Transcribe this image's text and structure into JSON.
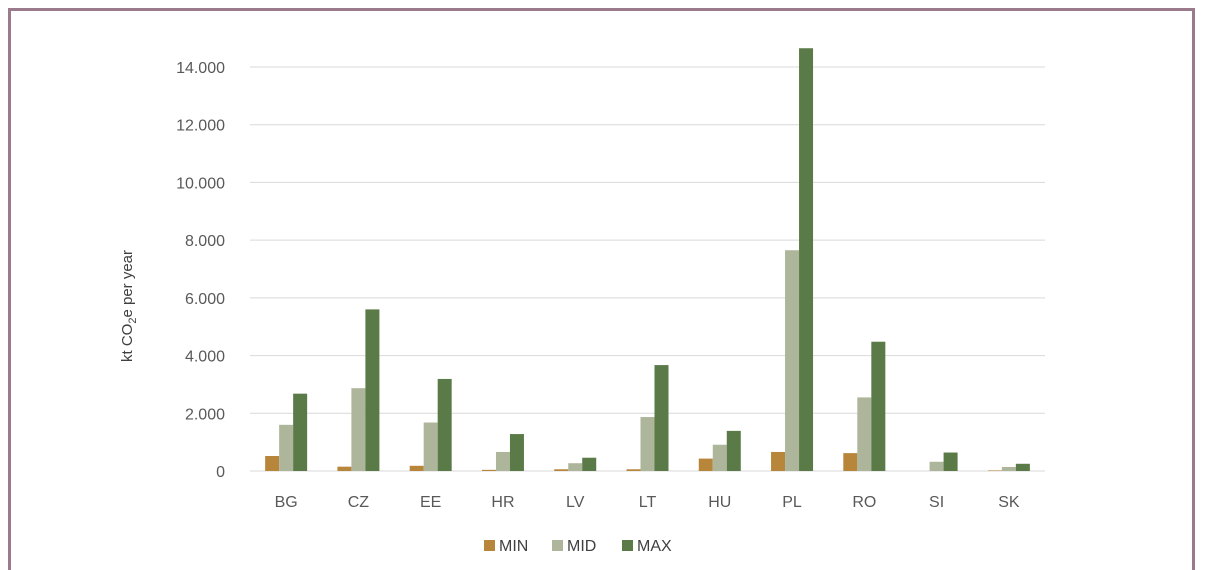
{
  "chart_data": {
    "type": "bar",
    "categories": [
      "BG",
      "CZ",
      "EE",
      "HR",
      "LV",
      "LT",
      "HU",
      "PL",
      "RO",
      "SI",
      "SK"
    ],
    "series": [
      {
        "name": "MIN",
        "color": "#b8863b",
        "values": [
          520,
          150,
          180,
          40,
          60,
          60,
          430,
          660,
          620,
          0,
          20
        ]
      },
      {
        "name": "MID",
        "color": "#adb59a",
        "values": [
          1600,
          2870,
          1680,
          660,
          270,
          1870,
          910,
          7650,
          2550,
          320,
          140
        ]
      },
      {
        "name": "MAX",
        "color": "#5a7a47",
        "values": [
          2680,
          5600,
          3190,
          1280,
          460,
          3670,
          1390,
          14650,
          4480,
          640,
          250
        ]
      }
    ],
    "ylabel_main": "kt CO",
    "ylabel_sub": "2",
    "ylabel_tail": "e per year",
    "yticks": [
      "0",
      "2.000",
      "4.000",
      "6.000",
      "8.000",
      "10.000",
      "12.000",
      "14.000"
    ],
    "ylim": [
      0,
      14000
    ],
    "grid": true,
    "legend_position": "bottom"
  }
}
